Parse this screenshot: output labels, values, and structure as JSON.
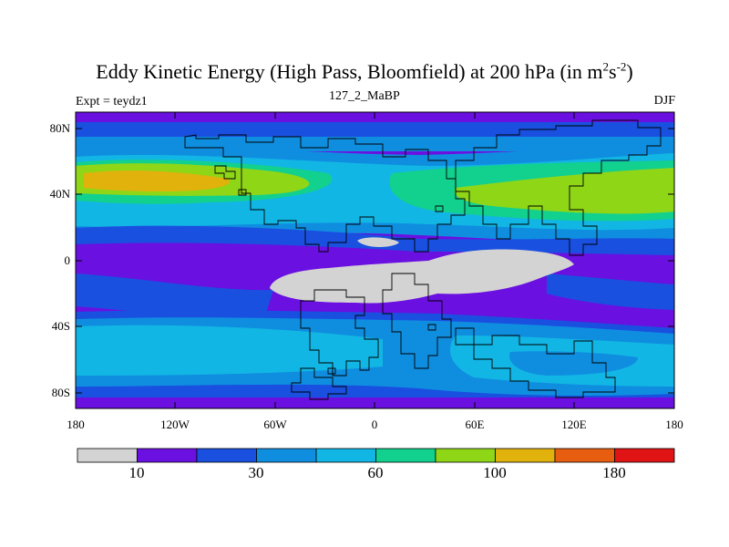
{
  "title": {
    "main": "Eddy Kinetic Energy (High Pass, Bloomfield) at 200 hPa (in m",
    "sup1": "2",
    "mid": "s",
    "sup2": "-2",
    "end": ")"
  },
  "subtitle": "127_2_MaBP",
  "expt_label": "Expt = teydz1",
  "season": "DJF",
  "axes": {
    "lat_labels": [
      "80N",
      "40N",
      "0",
      "40S",
      "80S"
    ],
    "lon_labels": [
      "180",
      "120W",
      "60W",
      "0",
      "60E",
      "120E",
      "180"
    ]
  },
  "colorbar": {
    "colors": [
      "#d3d3d3",
      "#6a10e0",
      "#1a50e0",
      "#0f8ee0",
      "#12b6e4",
      "#12d08e",
      "#8fd617",
      "#e2b20c",
      "#e85e10",
      "#e01414"
    ],
    "labels": [
      "10",
      "30",
      "60",
      "100",
      "180"
    ]
  },
  "map_colors": {
    "c1": "#6a10e0",
    "c2": "#1a50e0",
    "c3": "#0f8ee0",
    "c4": "#12b6e4",
    "c5": "#12d08e",
    "c6": "#8fd617",
    "c7": "#e2b20c",
    "low": "#d3d3d3"
  }
}
